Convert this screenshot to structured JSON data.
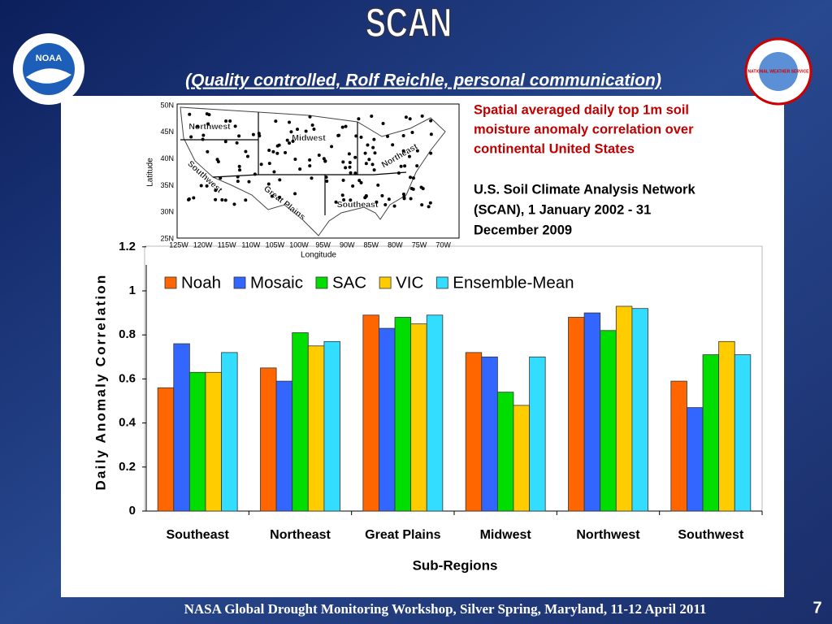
{
  "slide": {
    "title": "SCAN",
    "subtitle": "(Quality controlled, Rolf Reichle, personal communication)",
    "footer": "NASA Global Drought Monitoring Workshop, Silver Spring, Maryland, 11-12 April 2011",
    "page_number": "7",
    "left_logo": "NOAA",
    "right_logo": "NATIONAL WEATHER SERVICE",
    "description_red": [
      "Spatial averaged daily top 1m soil",
      "moisture anomaly correlation over",
      "continental United States"
    ],
    "description_black": [
      "U.S. Soil Climate Analysis Network",
      "(SCAN), 1 January 2002 - 31",
      "December 2009"
    ]
  },
  "map": {
    "lat_labels": [
      "50N",
      "45N",
      "40N",
      "35N",
      "30N",
      "25N"
    ],
    "lon_labels": [
      "125W",
      "120W",
      "115W",
      "110W",
      "105W",
      "100W",
      "95W",
      "90W",
      "85W",
      "80W",
      "75W",
      "70W"
    ],
    "x_label": "Longitude",
    "y_label": "Latitude",
    "regions": [
      "Northwest",
      "Midwest",
      "Northeast",
      "Southwest",
      "Great Plains",
      "Southeast"
    ]
  },
  "chart_data": {
    "type": "bar",
    "x_label": "Sub-Regions",
    "y_label": "Daily Anomaly Correlation",
    "categories": [
      "Southeast",
      "Northeast",
      "Great Plains",
      "Midwest",
      "Northwest",
      "Southwest"
    ],
    "series": [
      {
        "name": "Noah",
        "color": "#ff6600",
        "values": [
          0.56,
          0.65,
          0.89,
          0.72,
          0.88,
          0.59
        ]
      },
      {
        "name": "Mosaic",
        "color": "#3366ff",
        "values": [
          0.76,
          0.59,
          0.83,
          0.7,
          0.9,
          0.47
        ]
      },
      {
        "name": "SAC",
        "color": "#00dd00",
        "values": [
          0.63,
          0.81,
          0.88,
          0.54,
          0.82,
          0.71
        ]
      },
      {
        "name": "VIC",
        "color": "#ffcc00",
        "values": [
          0.63,
          0.75,
          0.85,
          0.48,
          0.93,
          0.77
        ]
      },
      {
        "name": "Ensemble-Mean",
        "color": "#33ddff",
        "values": [
          0.72,
          0.77,
          0.89,
          0.7,
          0.92,
          0.71
        ]
      }
    ],
    "ylim": [
      0,
      1.2
    ],
    "yticks": [
      0,
      0.2,
      0.4,
      0.6,
      0.8,
      1,
      1.2
    ],
    "legend": "top-left"
  }
}
